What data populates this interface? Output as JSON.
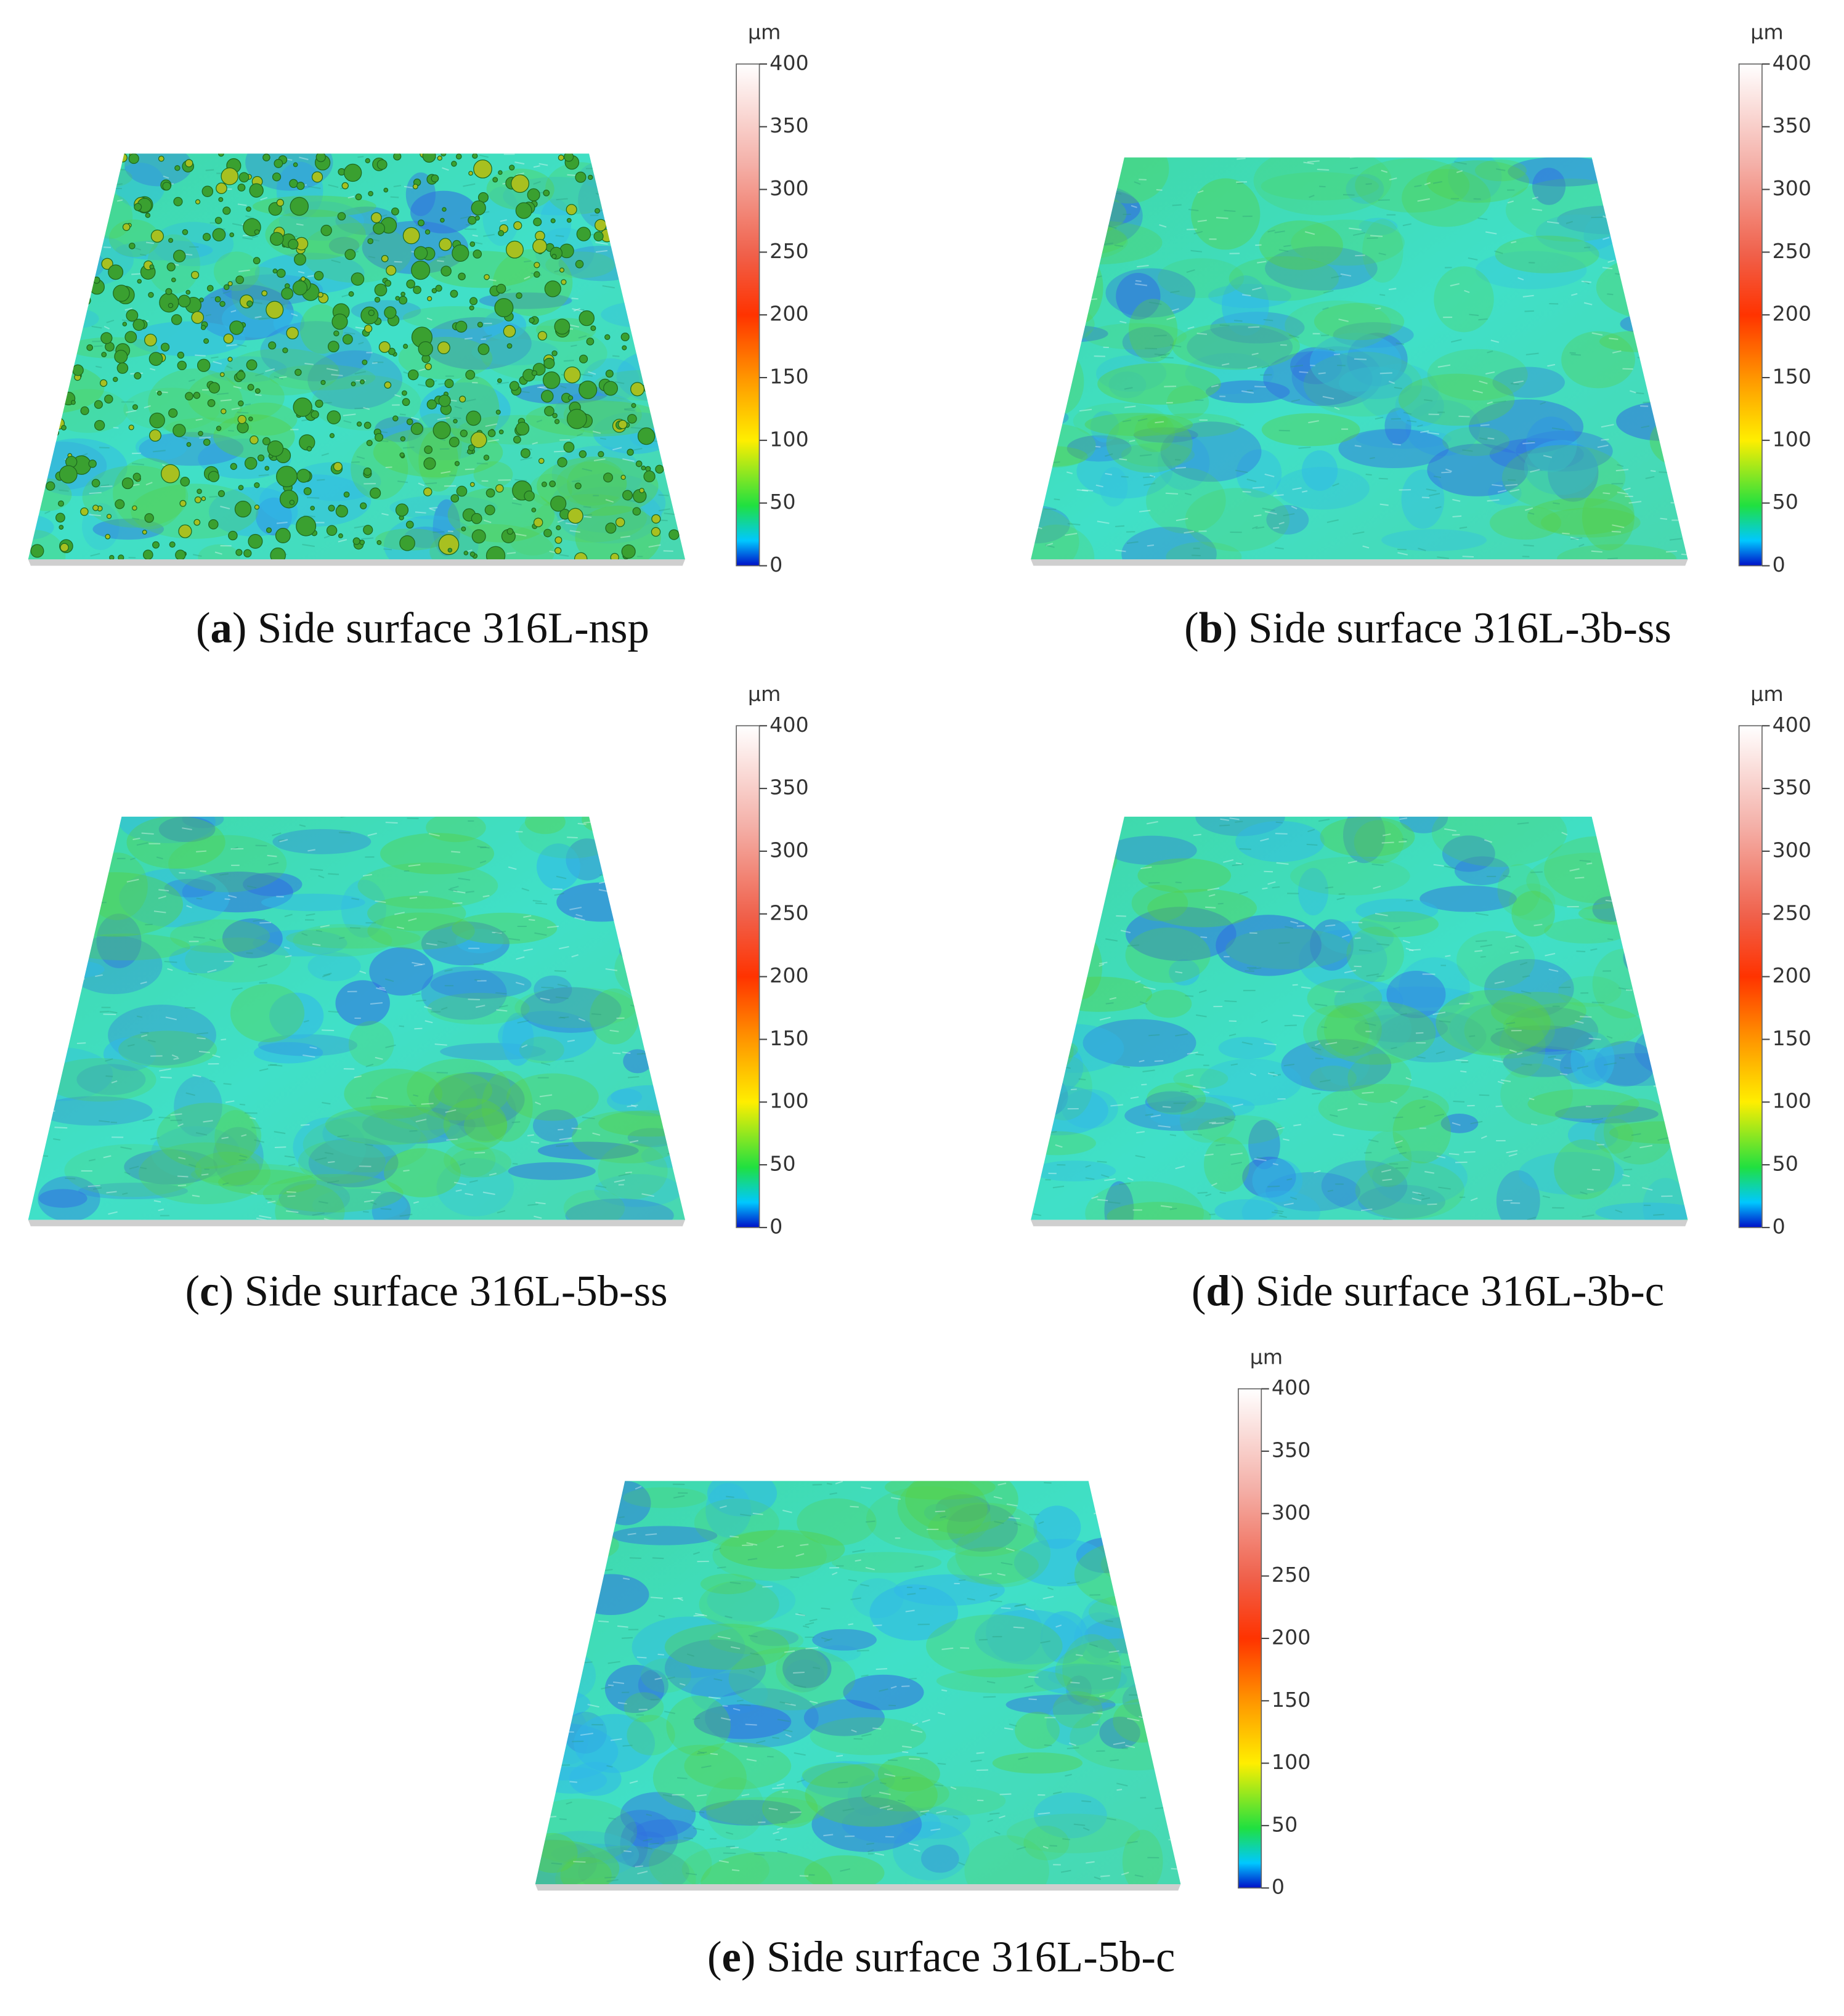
{
  "colorbar": {
    "unit": "μm",
    "lim": [
      0,
      400
    ],
    "ticks": [
      0,
      50,
      100,
      150,
      200,
      250,
      300,
      350,
      400
    ]
  },
  "panels": [
    {
      "caption": [
        "(",
        "a",
        ") Side surface 316L-nsp"
      ]
    },
    {
      "caption": [
        "(",
        "b",
        ") Side surface 316L-3b-ss"
      ]
    },
    {
      "caption": [
        "(",
        "c",
        ") Side surface 316L-5b-ss"
      ]
    },
    {
      "caption": [
        "(",
        "d",
        ") Side surface 316L-3b-c"
      ]
    },
    {
      "caption": [
        "(",
        "e",
        ") Side surface 316L-5b-c"
      ]
    }
  ]
}
